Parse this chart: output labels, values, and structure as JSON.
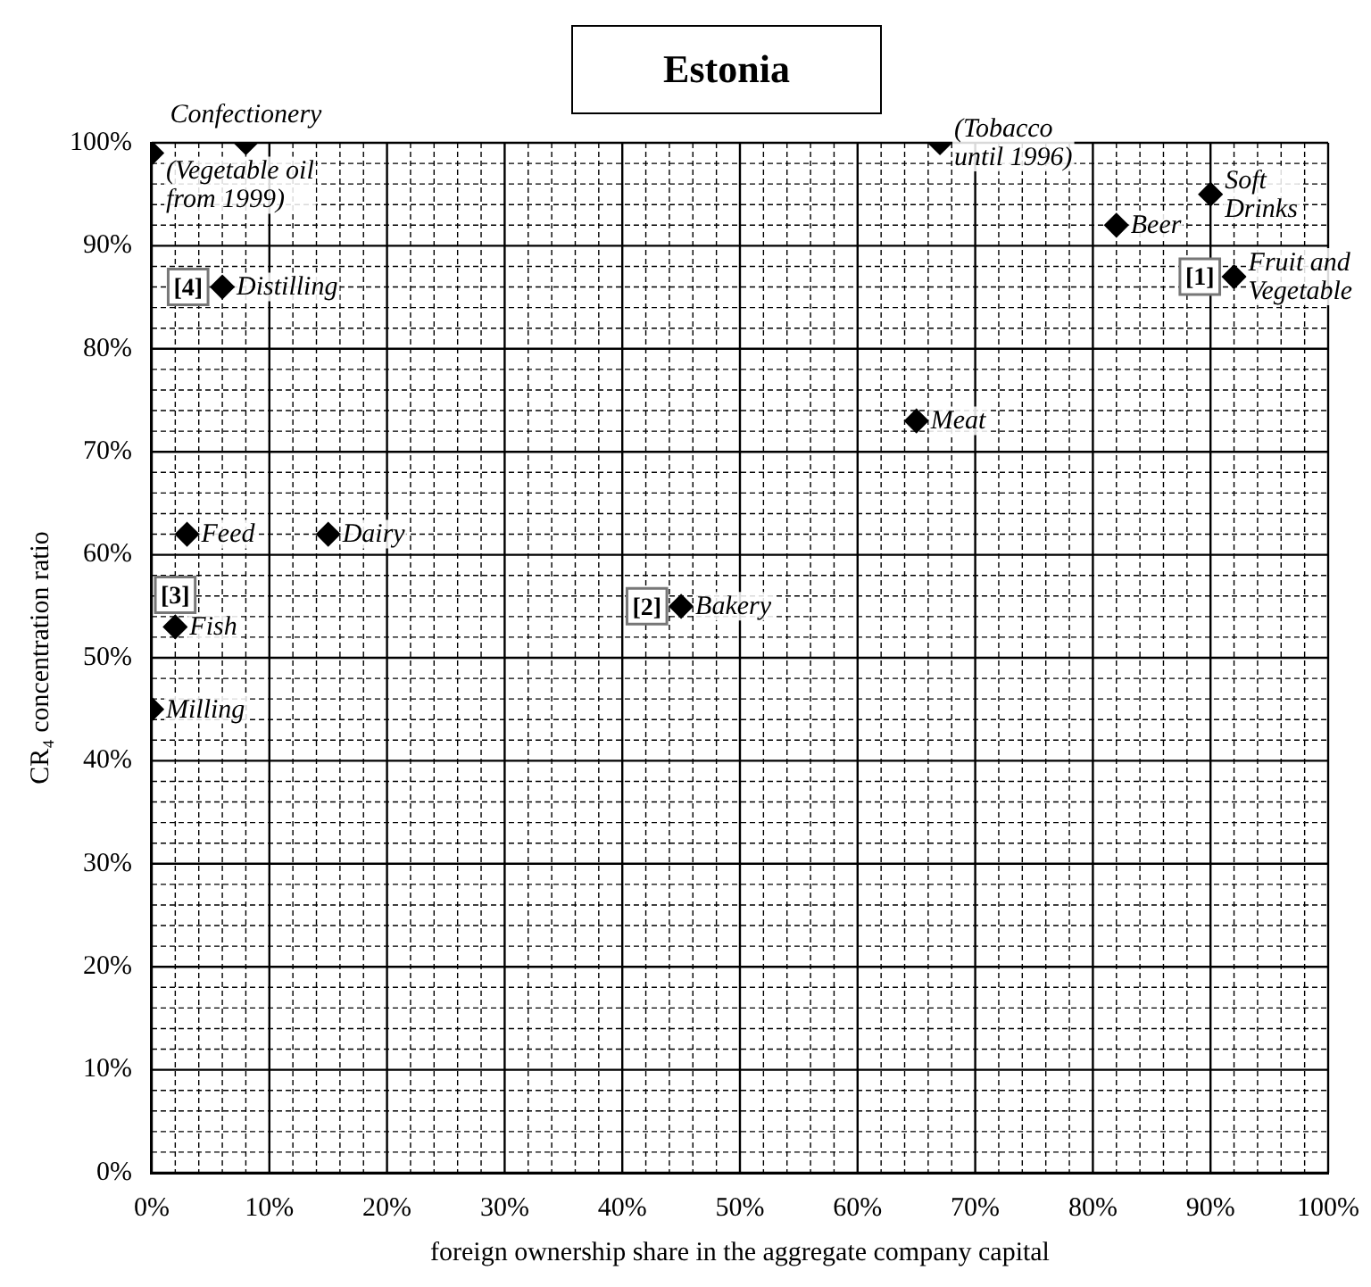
{
  "chart_data": {
    "type": "scatter",
    "title": "Estonia",
    "xlabel": "foreign ownership share in the aggregate company capital",
    "ylabel": "CR₄ concentration ratio",
    "x": [
      0,
      8,
      6,
      3,
      15,
      2,
      0,
      45,
      65,
      67,
      82,
      90,
      92
    ],
    "values": [
      99,
      100,
      86,
      62,
      62,
      53,
      45,
      55,
      73,
      100,
      92,
      95,
      87
    ],
    "color": "#000000",
    "marker": "diamond",
    "grid": true,
    "legend": false,
    "xlim": [
      0,
      100
    ],
    "ylim": [
      0,
      100
    ],
    "xticks": [
      {
        "value": 0,
        "label": "0%"
      },
      {
        "value": 2,
        "label": null
      },
      {
        "value": 4,
        "label": null
      },
      {
        "value": 6,
        "label": null
      },
      {
        "value": 8,
        "label": null
      },
      {
        "value": 10,
        "label": "10%"
      },
      {
        "value": 12,
        "label": null
      },
      {
        "value": 14,
        "label": null
      },
      {
        "value": 16,
        "label": null
      },
      {
        "value": 18,
        "label": null
      },
      {
        "value": 20,
        "label": "20%"
      },
      {
        "value": 22,
        "label": null
      },
      {
        "value": 24,
        "label": null
      },
      {
        "value": 26,
        "label": null
      },
      {
        "value": 28,
        "label": null
      },
      {
        "value": 30,
        "label": "30%"
      },
      {
        "value": 32,
        "label": null
      },
      {
        "value": 34,
        "label": null
      },
      {
        "value": 36,
        "label": null
      },
      {
        "value": 38,
        "label": null
      },
      {
        "value": 40,
        "label": "40%"
      },
      {
        "value": 42,
        "label": null
      },
      {
        "value": 44,
        "label": null
      },
      {
        "value": 46,
        "label": null
      },
      {
        "value": 48,
        "label": null
      },
      {
        "value": 50,
        "label": "50%"
      },
      {
        "value": 52,
        "label": null
      },
      {
        "value": 54,
        "label": null
      },
      {
        "value": 56,
        "label": null
      },
      {
        "value": 58,
        "label": null
      },
      {
        "value": 60,
        "label": "60%"
      },
      {
        "value": 62,
        "label": null
      },
      {
        "value": 64,
        "label": null
      },
      {
        "value": 66,
        "label": null
      },
      {
        "value": 68,
        "label": null
      },
      {
        "value": 70,
        "label": "70%"
      },
      {
        "value": 72,
        "label": null
      },
      {
        "value": 74,
        "label": null
      },
      {
        "value": 76,
        "label": null
      },
      {
        "value": 78,
        "label": null
      },
      {
        "value": 80,
        "label": "80%"
      },
      {
        "value": 82,
        "label": null
      },
      {
        "value": 84,
        "label": null
      },
      {
        "value": 86,
        "label": null
      },
      {
        "value": 88,
        "label": null
      },
      {
        "value": 90,
        "label": "90%"
      },
      {
        "value": 92,
        "label": null
      },
      {
        "value": 94,
        "label": null
      },
      {
        "value": 96,
        "label": null
      },
      {
        "value": 98,
        "label": null
      },
      {
        "value": 100,
        "label": "100%"
      }
    ],
    "yticks": [
      {
        "value": 0,
        "label": "0%"
      },
      {
        "value": 2,
        "label": null
      },
      {
        "value": 4,
        "label": null
      },
      {
        "value": 6,
        "label": null
      },
      {
        "value": 8,
        "label": null
      },
      {
        "value": 10,
        "label": "10%"
      },
      {
        "value": 12,
        "label": null
      },
      {
        "value": 14,
        "label": null
      },
      {
        "value": 16,
        "label": null
      },
      {
        "value": 18,
        "label": null
      },
      {
        "value": 20,
        "label": "20%"
      },
      {
        "value": 22,
        "label": null
      },
      {
        "value": 24,
        "label": null
      },
      {
        "value": 26,
        "label": null
      },
      {
        "value": 28,
        "label": null
      },
      {
        "value": 30,
        "label": "30%"
      },
      {
        "value": 32,
        "label": null
      },
      {
        "value": 34,
        "label": null
      },
      {
        "value": 36,
        "label": null
      },
      {
        "value": 38,
        "label": null
      },
      {
        "value": 40,
        "label": "40%"
      },
      {
        "value": 42,
        "label": null
      },
      {
        "value": 44,
        "label": null
      },
      {
        "value": 46,
        "label": null
      },
      {
        "value": 48,
        "label": null
      },
      {
        "value": 50,
        "label": "50%"
      },
      {
        "value": 52,
        "label": null
      },
      {
        "value": 54,
        "label": null
      },
      {
        "value": 56,
        "label": null
      },
      {
        "value": 58,
        "label": null
      },
      {
        "value": 60,
        "label": "60%"
      },
      {
        "value": 62,
        "label": null
      },
      {
        "value": 64,
        "label": null
      },
      {
        "value": 66,
        "label": null
      },
      {
        "value": 68,
        "label": null
      },
      {
        "value": 70,
        "label": "70%"
      },
      {
        "value": 72,
        "label": null
      },
      {
        "value": 74,
        "label": null
      },
      {
        "value": 76,
        "label": null
      },
      {
        "value": 78,
        "label": null
      },
      {
        "value": 80,
        "label": "80%"
      },
      {
        "value": 82,
        "label": null
      },
      {
        "value": 84,
        "label": null
      },
      {
        "value": 86,
        "label": null
      },
      {
        "value": 88,
        "label": null
      },
      {
        "value": 90,
        "label": "90%"
      },
      {
        "value": 92,
        "label": null
      },
      {
        "value": 94,
        "label": null
      },
      {
        "value": 96,
        "label": null
      },
      {
        "value": 98,
        "label": null
      },
      {
        "value": 100,
        "label": "100%"
      }
    ],
    "annotations": [
      {
        "text": "(Vegetable oil\nfrom 1999)",
        "x": 0,
        "y": 99
      },
      {
        "text": "Confectionery",
        "x": 8,
        "y": 100
      },
      {
        "text": "Distilling",
        "x": 6,
        "y": 86
      },
      {
        "text": "Feed",
        "x": 3,
        "y": 62
      },
      {
        "text": "Dairy",
        "x": 15,
        "y": 62
      },
      {
        "text": "Fish",
        "x": 2,
        "y": 53
      },
      {
        "text": "Milling",
        "x": 0,
        "y": 45
      },
      {
        "text": "Bakery",
        "x": 45,
        "y": 55
      },
      {
        "text": "Meat",
        "x": 65,
        "y": 73
      },
      {
        "text": "(Tobacco\nuntil 1996)",
        "x": 67,
        "y": 100
      },
      {
        "text": "Beer",
        "x": 82,
        "y": 92
      },
      {
        "text": "Soft\nDrinks",
        "x": 90,
        "y": 95
      },
      {
        "text": "Fruit and\nVegetable",
        "x": 92,
        "y": 87
      },
      {
        "text": "[1]",
        "x": 92,
        "y": 87
      },
      {
        "text": "[2]",
        "x": 45,
        "y": 55
      },
      {
        "text": "[3]",
        "x": 2,
        "y": 53
      },
      {
        "text": "[4]",
        "x": 6,
        "y": 86
      }
    ]
  }
}
